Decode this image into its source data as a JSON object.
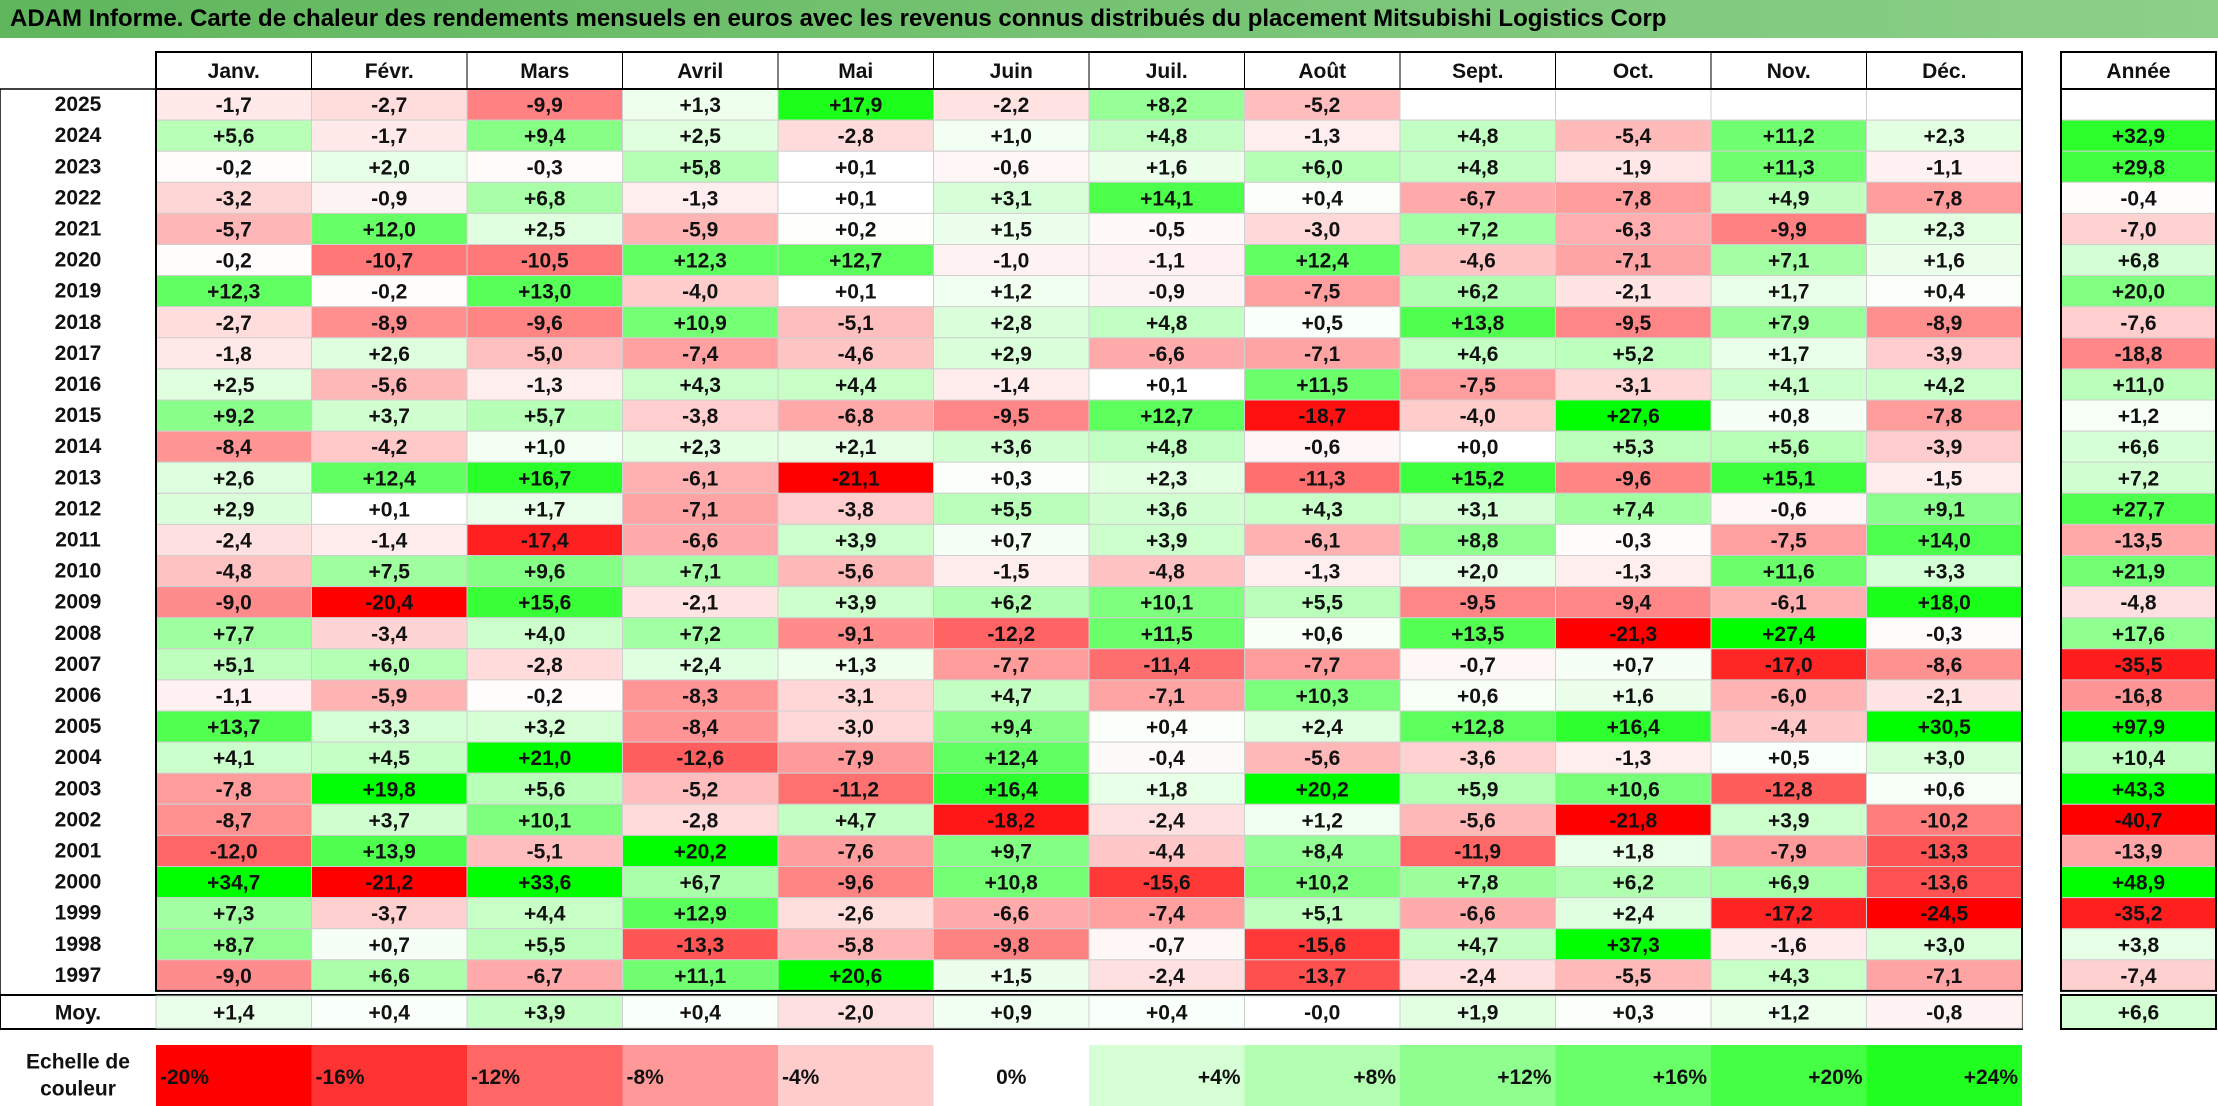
{
  "title": "ADAM Informe. Carte de chaleur des rendements mensuels en euros avec les revenus connus distribués du placement Mitsubishi Logistics Corp",
  "chart_data": {
    "type": "heatmap",
    "columns": [
      "Janv.",
      "Févr.",
      "Mars",
      "Avril",
      "Mai",
      "Juin",
      "Juil.",
      "Août",
      "Sept.",
      "Oct.",
      "Nov.",
      "Déc."
    ],
    "year_column": "Année",
    "rows": [
      {
        "year": "2025",
        "values": [
          -1.7,
          -2.7,
          -9.9,
          1.3,
          17.9,
          -2.2,
          8.2,
          -5.2,
          null,
          null,
          null,
          null
        ],
        "annual": null
      },
      {
        "year": "2024",
        "values": [
          5.6,
          -1.7,
          9.4,
          2.5,
          -2.8,
          1.0,
          4.8,
          -1.3,
          4.8,
          -5.4,
          11.2,
          2.3
        ],
        "annual": 32.9
      },
      {
        "year": "2023",
        "values": [
          -0.2,
          2.0,
          -0.3,
          5.8,
          0.1,
          -0.6,
          1.6,
          6.0,
          4.8,
          -1.9,
          11.3,
          -1.1
        ],
        "annual": 29.8
      },
      {
        "year": "2022",
        "values": [
          -3.2,
          -0.9,
          6.8,
          -1.3,
          0.1,
          3.1,
          14.1,
          0.4,
          -6.7,
          -7.8,
          4.9,
          -7.8
        ],
        "annual": -0.4
      },
      {
        "year": "2021",
        "values": [
          -5.7,
          12.0,
          2.5,
          -5.9,
          0.2,
          1.5,
          -0.5,
          -3.0,
          7.2,
          -6.3,
          -9.9,
          2.3
        ],
        "annual": -7.0
      },
      {
        "year": "2020",
        "values": [
          -0.2,
          -10.7,
          -10.5,
          12.3,
          12.7,
          -1.0,
          -1.1,
          12.4,
          -4.6,
          -7.1,
          7.1,
          1.6
        ],
        "annual": 6.8
      },
      {
        "year": "2019",
        "values": [
          12.3,
          -0.2,
          13.0,
          -4.0,
          0.1,
          1.2,
          -0.9,
          -7.5,
          6.2,
          -2.1,
          1.7,
          0.4
        ],
        "annual": 20.0
      },
      {
        "year": "2018",
        "values": [
          -2.7,
          -8.9,
          -9.6,
          10.9,
          -5.1,
          2.8,
          4.8,
          0.5,
          13.8,
          -9.5,
          7.9,
          -8.9
        ],
        "annual": -7.6
      },
      {
        "year": "2017",
        "values": [
          -1.8,
          2.6,
          -5.0,
          -7.4,
          -4.6,
          2.9,
          -6.6,
          -7.1,
          4.6,
          5.2,
          1.7,
          -3.9
        ],
        "annual": -18.8
      },
      {
        "year": "2016",
        "values": [
          2.5,
          -5.6,
          -1.3,
          4.3,
          4.4,
          -1.4,
          0.1,
          11.5,
          -7.5,
          -3.1,
          4.1,
          4.2
        ],
        "annual": 11.0
      },
      {
        "year": "2015",
        "values": [
          9.2,
          3.7,
          5.7,
          -3.8,
          -6.8,
          -9.5,
          12.7,
          -18.7,
          -4.0,
          27.6,
          0.8,
          -7.8
        ],
        "annual": 1.2
      },
      {
        "year": "2014",
        "values": [
          -8.4,
          -4.2,
          1.0,
          2.3,
          2.1,
          3.6,
          4.8,
          -0.6,
          0.0,
          5.3,
          5.6,
          -3.9
        ],
        "annual": 6.6
      },
      {
        "year": "2013",
        "values": [
          2.6,
          12.4,
          16.7,
          -6.1,
          -21.1,
          0.3,
          2.3,
          -11.3,
          15.2,
          -9.6,
          15.1,
          -1.5
        ],
        "annual": 7.2
      },
      {
        "year": "2012",
        "values": [
          2.9,
          0.1,
          1.7,
          -7.1,
          -3.8,
          5.5,
          3.6,
          4.3,
          3.1,
          7.4,
          -0.6,
          9.1
        ],
        "annual": 27.7
      },
      {
        "year": "2011",
        "values": [
          -2.4,
          -1.4,
          -17.4,
          -6.6,
          3.9,
          0.7,
          3.9,
          -6.1,
          8.8,
          -0.3,
          -7.5,
          14.0
        ],
        "annual": -13.5
      },
      {
        "year": "2010",
        "values": [
          -4.8,
          7.5,
          9.6,
          7.1,
          -5.6,
          -1.5,
          -4.8,
          -1.3,
          2.0,
          -1.3,
          11.6,
          3.3
        ],
        "annual": 21.9
      },
      {
        "year": "2009",
        "values": [
          -9.0,
          -20.4,
          15.6,
          -2.1,
          3.9,
          6.2,
          10.1,
          5.5,
          -9.5,
          -9.4,
          -6.1,
          18.0
        ],
        "annual": -4.8
      },
      {
        "year": "2008",
        "values": [
          7.7,
          -3.4,
          4.0,
          7.2,
          -9.1,
          -12.2,
          11.5,
          0.6,
          13.5,
          -21.3,
          27.4,
          -0.3
        ],
        "annual": 17.6
      },
      {
        "year": "2007",
        "values": [
          5.1,
          6.0,
          -2.8,
          2.4,
          1.3,
          -7.7,
          -11.4,
          -7.7,
          -0.7,
          0.7,
          -17.0,
          -8.6
        ],
        "annual": -35.5
      },
      {
        "year": "2006",
        "values": [
          -1.1,
          -5.9,
          -0.2,
          -8.3,
          -3.1,
          4.7,
          -7.1,
          10.3,
          0.6,
          1.6,
          -6.0,
          -2.1
        ],
        "annual": -16.8
      },
      {
        "year": "2005",
        "values": [
          13.7,
          3.3,
          3.2,
          -8.4,
          -3.0,
          9.4,
          0.4,
          2.4,
          12.8,
          16.4,
          -4.4,
          30.5
        ],
        "annual": 97.9
      },
      {
        "year": "2004",
        "values": [
          4.1,
          4.5,
          21.0,
          -12.6,
          -7.9,
          12.4,
          -0.4,
          -5.6,
          -3.6,
          -1.3,
          0.5,
          3.0
        ],
        "annual": 10.4
      },
      {
        "year": "2003",
        "values": [
          -7.8,
          19.8,
          5.6,
          -5.2,
          -11.2,
          16.4,
          1.8,
          20.2,
          5.9,
          10.6,
          -12.8,
          0.6
        ],
        "annual": 43.3
      },
      {
        "year": "2002",
        "values": [
          -8.7,
          3.7,
          10.1,
          -2.8,
          4.7,
          -18.2,
          -2.4,
          1.2,
          -5.6,
          -21.8,
          3.9,
          -10.2
        ],
        "annual": -40.7
      },
      {
        "year": "2001",
        "values": [
          -12.0,
          13.9,
          -5.1,
          20.2,
          -7.6,
          9.7,
          -4.4,
          8.4,
          -11.9,
          1.8,
          -7.9,
          -13.3
        ],
        "annual": -13.9
      },
      {
        "year": "2000",
        "values": [
          34.7,
          -21.2,
          33.6,
          6.7,
          -9.6,
          10.8,
          -15.6,
          10.2,
          7.8,
          6.2,
          6.9,
          -13.6
        ],
        "annual": 48.9
      },
      {
        "year": "1999",
        "values": [
          7.3,
          -3.7,
          4.4,
          12.9,
          -2.6,
          -6.6,
          -7.4,
          5.1,
          -6.6,
          2.4,
          -17.2,
          -24.5
        ],
        "annual": -35.2
      },
      {
        "year": "1998",
        "values": [
          8.7,
          0.7,
          5.5,
          -13.3,
          -5.8,
          -9.8,
          -0.7,
          -15.6,
          4.7,
          37.3,
          -1.6,
          3.0
        ],
        "annual": 3.8
      },
      {
        "year": "1997",
        "values": [
          -9.0,
          6.6,
          -6.7,
          11.1,
          20.6,
          1.5,
          -2.4,
          -13.7,
          -2.4,
          -5.5,
          4.3,
          -7.1
        ],
        "annual": -7.4
      }
    ],
    "average": {
      "label": "Moy.",
      "values": [
        "+1,4",
        "+0,4",
        "+3,9",
        "+0,4",
        "-2,0",
        "+0,9",
        "+0,4",
        "-0,0",
        "+1,9",
        "+0,3",
        "+1,2",
        "-0,8"
      ],
      "annual": "+6,6"
    },
    "color_scale": {
      "label": "Echelle de couleur",
      "stops": [
        "-20%",
        "-16%",
        "-12%",
        "-8%",
        "-4%",
        "0%",
        "+4%",
        "+8%",
        "+12%",
        "+16%",
        "+20%",
        "+24%"
      ],
      "negative_color": "#ff0000",
      "positive_color": "#00ff00",
      "neutral_color": "#ffffff"
    }
  }
}
